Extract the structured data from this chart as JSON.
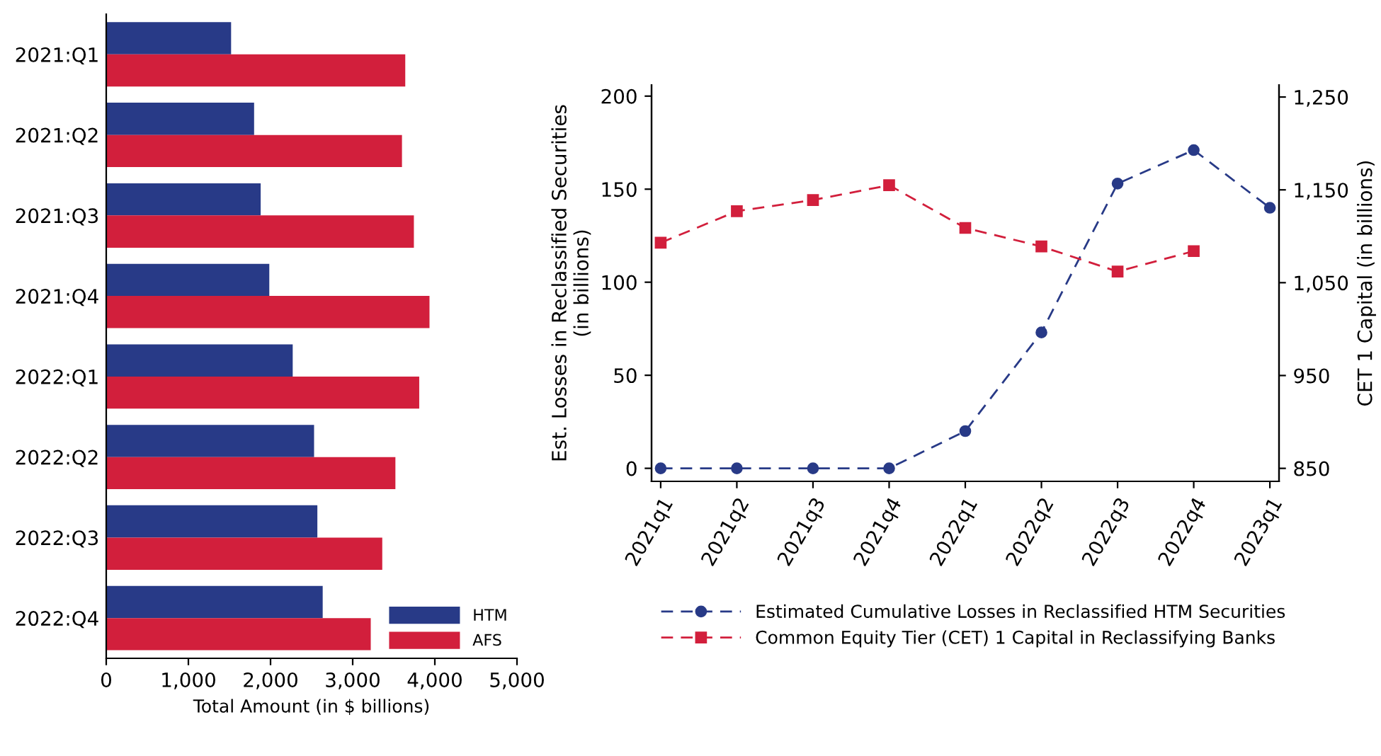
{
  "chart_data": [
    {
      "type": "bar",
      "orientation": "horizontal",
      "xlabel": "Total Amount (in $ billions)",
      "categories": [
        "2021:Q1",
        "2021:Q2",
        "2021:Q3",
        "2021:Q4",
        "2022:Q1",
        "2022:Q2",
        "2022:Q3",
        "2022:Q4"
      ],
      "series": [
        {
          "name": "HTM",
          "color": "#283a87",
          "values": [
            1520,
            1800,
            1880,
            1985,
            2270,
            2530,
            2570,
            2635
          ]
        },
        {
          "name": "AFS",
          "color": "#d21f3c",
          "values": [
            3640,
            3600,
            3745,
            3935,
            3810,
            3520,
            3360,
            3220
          ]
        }
      ],
      "xlim": [
        0,
        5000
      ],
      "xticks": [
        0,
        {
          "value": 1000,
          "label": "1,000"
        },
        {
          "value": 2000,
          "label": "2,000"
        },
        {
          "value": 3000,
          "label": "3,000"
        },
        {
          "value": 4000,
          "label": "4,000"
        },
        {
          "value": 5000,
          "label": "5,000"
        }
      ],
      "grid": false,
      "legend": "bottom right"
    },
    {
      "type": "line",
      "ylabel": "Est. Losses in Reclassified Securities\n(in billions)",
      "y2label": "CET 1 Capital (in billions)",
      "categories": [
        "2021q1",
        "2021q2",
        "2021q3",
        "2021q4",
        "2022q1",
        "2022q2",
        "2022q3",
        "2022q4",
        "2023q1"
      ],
      "series": [
        {
          "name": "Estimated Cumulative Losses in Reclassified HTM Securities",
          "color": "#283a87",
          "marker": "circle",
          "values": [
            0,
            0,
            0,
            0,
            20,
            73,
            153,
            171,
            140
          ]
        },
        {
          "name": "Common Equity Tier (CET) 1 Capital in Reclassifying Banks",
          "color": "#d21f3c",
          "marker": "square",
          "axis": "y2",
          "values": [
            1093,
            1127,
            1139,
            1155,
            1109,
            1089,
            1062,
            1084,
            null
          ]
        }
      ],
      "ylim": [
        -7,
        206
      ],
      "yticks": [
        0,
        50,
        100,
        150,
        200
      ],
      "y2lim": [
        836,
        1263
      ],
      "y2ticks": [
        850,
        950,
        {
          "value": 1050,
          "label": "1,050"
        },
        {
          "value": 1150,
          "label": "1,150"
        },
        {
          "value": 1250,
          "label": "1,250"
        }
      ],
      "line_style": "dashed",
      "grid": false,
      "legend": "bottom"
    }
  ]
}
